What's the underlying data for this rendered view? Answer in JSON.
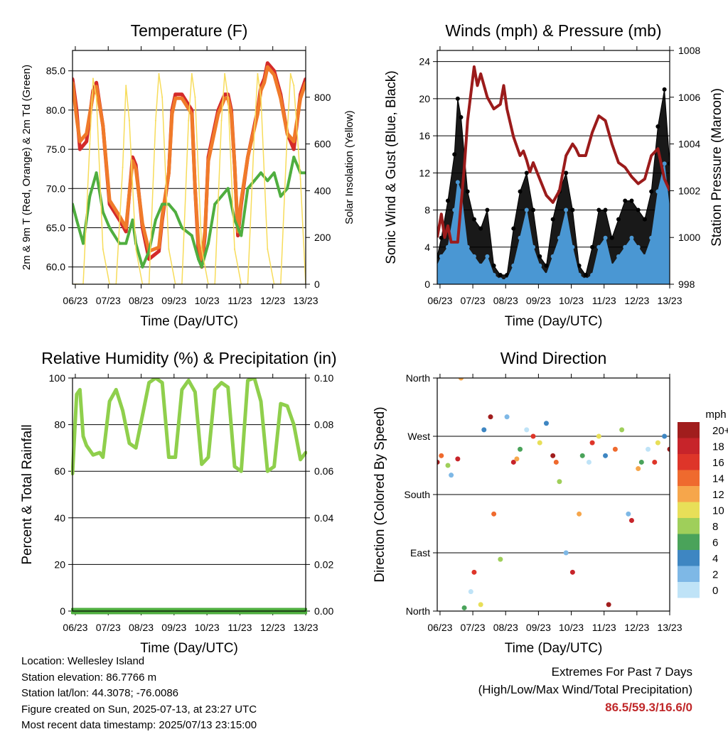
{
  "chart_data": [
    {
      "type": "line",
      "title": "Temperature (F)",
      "xlabel": "Time (Day/UTC)",
      "ylabel": "2m & 9m T (Red, Orange) & 2m Td (Green)",
      "y2label": "Solar Insolation (Yellow)",
      "x_ticks": [
        "06/23",
        "07/23",
        "08/23",
        "09/23",
        "10/23",
        "11/23",
        "12/23",
        "13/23"
      ],
      "ylim": [
        57.8,
        87.6
      ],
      "y_ticks": [
        60.0,
        65.0,
        70.0,
        75.0,
        80.0,
        85.0
      ],
      "y2lim": [
        0,
        1000
      ],
      "y2_ticks": [
        0,
        200,
        400,
        600,
        800
      ],
      "grid": "horizontal",
      "series": [
        {
          "name": "2m T",
          "color": "#d42a2a",
          "axis": "left",
          "x": [
            6.875,
            7.0,
            7.1,
            7.3,
            7.5,
            7.6,
            7.8,
            8.0,
            8.3,
            8.5,
            8.7,
            8.8,
            9.0,
            9.2,
            9.5,
            9.6,
            9.8,
            9.9,
            10.0,
            10.2,
            10.5,
            10.6,
            10.7,
            10.8,
            10.9,
            11.0,
            11.3,
            11.5,
            11.6,
            11.7,
            11.8,
            11.9,
            12.0,
            12.2,
            12.5,
            12.6,
            12.7,
            12.8,
            13.0,
            13.2,
            13.4,
            13.5,
            13.6,
            13.8,
            13.96
          ],
          "values": [
            84,
            80,
            75,
            76,
            82.5,
            83.5,
            78,
            68,
            66,
            64.5,
            74,
            73,
            65,
            61,
            62,
            66,
            72,
            80,
            82,
            82,
            80,
            70,
            62,
            60,
            64,
            74,
            80,
            82,
            82,
            80,
            73,
            64,
            68,
            74,
            80,
            83,
            84,
            86,
            85,
            82,
            77,
            76,
            75,
            82,
            84
          ]
        },
        {
          "name": "9m T",
          "color": "#f07a2a",
          "axis": "left",
          "x": [
            6.875,
            7.0,
            7.1,
            7.3,
            7.5,
            7.6,
            7.8,
            8.0,
            8.3,
            8.5,
            8.7,
            8.8,
            9.0,
            9.2,
            9.5,
            9.6,
            9.8,
            9.9,
            10.0,
            10.2,
            10.5,
            10.6,
            10.7,
            10.8,
            10.9,
            11.0,
            11.3,
            11.5,
            11.6,
            11.7,
            11.8,
            11.9,
            12.0,
            12.2,
            12.5,
            12.6,
            12.7,
            12.8,
            13.0,
            13.2,
            13.4,
            13.5,
            13.6,
            13.8,
            13.96
          ],
          "values": [
            83.5,
            79,
            76,
            77,
            82,
            83,
            78,
            68.5,
            66.5,
            65,
            73.5,
            72.5,
            65.5,
            62,
            62.5,
            66.5,
            72,
            79.5,
            81.5,
            81.5,
            79.5,
            70,
            63,
            61,
            64.5,
            73.5,
            79.5,
            81.5,
            81.5,
            79.5,
            73,
            64.5,
            68.5,
            74,
            79.5,
            82.5,
            83.5,
            85.5,
            84.5,
            81.5,
            77,
            76.5,
            76,
            81.5,
            83.5
          ]
        },
        {
          "name": "2m Td",
          "color": "#4fae3f",
          "axis": "left",
          "x": [
            6.875,
            7.0,
            7.2,
            7.4,
            7.6,
            7.8,
            8.0,
            8.3,
            8.5,
            8.7,
            8.8,
            9.0,
            9.2,
            9.4,
            9.6,
            9.8,
            10.0,
            10.2,
            10.5,
            10.7,
            10.8,
            11.0,
            11.2,
            11.4,
            11.6,
            11.8,
            12.0,
            12.2,
            12.4,
            12.6,
            12.8,
            13.0,
            13.2,
            13.4,
            13.5,
            13.6,
            13.8,
            13.96
          ],
          "values": [
            68,
            66,
            63,
            69,
            72,
            67,
            65,
            63,
            63,
            66,
            63,
            60,
            62,
            66,
            68,
            68,
            67,
            65,
            64,
            61,
            60,
            63,
            68,
            69,
            70,
            66,
            64,
            70,
            71,
            72,
            71,
            72,
            69,
            70,
            72,
            74,
            72,
            72
          ]
        },
        {
          "name": "Solar Insolation",
          "color": "#f7dc5a",
          "axis": "right",
          "x": [
            6.875,
            7.0,
            7.2,
            7.4,
            7.5,
            7.6,
            7.8,
            8.0,
            8.2,
            8.4,
            8.5,
            8.6,
            8.8,
            9.0,
            9.2,
            9.4,
            9.5,
            9.6,
            9.8,
            10.0,
            10.2,
            10.4,
            10.5,
            10.6,
            10.8,
            11.0,
            11.2,
            11.4,
            11.5,
            11.6,
            11.8,
            12.0,
            12.2,
            12.4,
            12.5,
            12.6,
            12.8,
            13.0,
            13.2,
            13.4,
            13.5,
            13.6,
            13.8,
            13.96
          ],
          "values": [
            0,
            0,
            0,
            600,
            880,
            800,
            150,
            0,
            0,
            500,
            850,
            700,
            150,
            0,
            0,
            700,
            900,
            800,
            150,
            0,
            0,
            700,
            900,
            800,
            150,
            0,
            0,
            700,
            900,
            800,
            150,
            0,
            0,
            650,
            900,
            800,
            150,
            0,
            0,
            650,
            900,
            850,
            450,
            0
          ]
        }
      ]
    },
    {
      "type": "scatter",
      "title": "Winds (mph) & Pressure (mb)",
      "xlabel": "Time (Day/UTC)",
      "ylabel": "Sonic Wind & Gust (Blue, Black)",
      "y2label": "Station Pressure (Maroon)",
      "x_ticks": [
        "06/23",
        "07/23",
        "08/23",
        "09/23",
        "10/23",
        "11/23",
        "12/23",
        "13/23"
      ],
      "ylim": [
        0,
        25.2
      ],
      "y_ticks": [
        0,
        4,
        8,
        12,
        16,
        20,
        24
      ],
      "y2lim": [
        998,
        1008
      ],
      "y2_ticks": [
        998,
        1000,
        1002,
        1004,
        1006,
        1008
      ],
      "grid": "horizontal",
      "series": [
        {
          "name": "Gust",
          "color": "#000000",
          "axis": "left",
          "x": [
            6.875,
            7.0,
            7.2,
            7.4,
            7.5,
            7.6,
            7.8,
            8.0,
            8.2,
            8.4,
            8.6,
            8.8,
            9.0,
            9.2,
            9.4,
            9.6,
            9.8,
            10.0,
            10.2,
            10.4,
            10.6,
            10.8,
            11.0,
            11.2,
            11.4,
            11.6,
            11.8,
            12.0,
            12.2,
            12.4,
            12.6,
            12.8,
            13.0,
            13.2,
            13.4,
            13.6,
            13.8,
            13.96
          ],
          "values": [
            3,
            5,
            9,
            14,
            20,
            18,
            10,
            7,
            6,
            8,
            2,
            1,
            1,
            6,
            10,
            12,
            8,
            3,
            2,
            7,
            10,
            12,
            8,
            2,
            1,
            4,
            8,
            8,
            5,
            7,
            9,
            9,
            8,
            7,
            10,
            17,
            21,
            13
          ]
        },
        {
          "name": "Sonic Wind",
          "color": "#4a97d3",
          "axis": "left",
          "x": [
            6.875,
            7.0,
            7.2,
            7.4,
            7.5,
            7.6,
            7.8,
            8.0,
            8.2,
            8.4,
            8.6,
            8.8,
            9.0,
            9.2,
            9.4,
            9.6,
            9.8,
            10.0,
            10.2,
            10.4,
            10.6,
            10.8,
            11.0,
            11.2,
            11.4,
            11.6,
            11.8,
            12.0,
            12.2,
            12.4,
            12.6,
            12.8,
            13.0,
            13.2,
            13.4,
            13.6,
            13.8,
            13.96
          ],
          "values": [
            2,
            3,
            4,
            8,
            11,
            10,
            4,
            3,
            2,
            3,
            1,
            0.5,
            0.5,
            2,
            5,
            8,
            4,
            2,
            1,
            3,
            5,
            8,
            4,
            1,
            0.5,
            1,
            4,
            5,
            2,
            3,
            4,
            5,
            4,
            3,
            5,
            10,
            13,
            8
          ]
        },
        {
          "name": "Station Pressure",
          "color": "#9b1b1b",
          "axis": "right",
          "x": [
            6.875,
            7.0,
            7.1,
            7.2,
            7.3,
            7.5,
            7.7,
            7.8,
            8.0,
            8.1,
            8.2,
            8.4,
            8.6,
            8.8,
            8.9,
            9.0,
            9.2,
            9.4,
            9.5,
            9.6,
            9.7,
            9.8,
            10.0,
            10.2,
            10.4,
            10.6,
            10.8,
            11.0,
            11.1,
            11.2,
            11.4,
            11.6,
            11.8,
            12.0,
            12.2,
            12.4,
            12.6,
            12.8,
            13.0,
            13.2,
            13.4,
            13.6,
            13.8,
            13.96
          ],
          "values": [
            1000,
            1001,
            1000,
            1000.5,
            999.8,
            999.8,
            1003,
            1005,
            1007.3,
            1006.5,
            1007,
            1006,
            1005.5,
            1005.7,
            1006.5,
            1005.5,
            1004.3,
            1003.5,
            1003.7,
            1003.3,
            1002.8,
            1003.2,
            1002.5,
            1001.8,
            1001.5,
            1002,
            1003.5,
            1004,
            1003.8,
            1003.5,
            1003.5,
            1004.5,
            1005.2,
            1005,
            1004,
            1003.2,
            1003,
            1002.6,
            1002.3,
            1002.5,
            1003.5,
            1003.8,
            1002.5,
            1002
          ]
        }
      ]
    },
    {
      "type": "line",
      "title": "Relative Humidity (%) & Precipitation (in)",
      "xlabel": "Time (Day/UTC)",
      "ylabel": "Percent & Total Rainfall",
      "x_ticks": [
        "06/23",
        "07/23",
        "08/23",
        "09/23",
        "10/23",
        "11/23",
        "12/23",
        "13/23"
      ],
      "ylim": [
        0,
        100
      ],
      "y_ticks": [
        0,
        20,
        40,
        60,
        80,
        100
      ],
      "y2lim": [
        0,
        0.1
      ],
      "y2_ticks": [
        "0.00",
        "0.02",
        "0.04",
        "0.06",
        "0.08",
        "0.10"
      ],
      "grid": "horizontal",
      "series": [
        {
          "name": "Relative Humidity",
          "color": "#8fcf4c",
          "axis": "left",
          "x": [
            6.875,
            7.0,
            7.1,
            7.2,
            7.3,
            7.5,
            7.7,
            7.8,
            8.0,
            8.2,
            8.4,
            8.6,
            8.8,
            9.0,
            9.2,
            9.4,
            9.6,
            9.8,
            10.0,
            10.2,
            10.4,
            10.6,
            10.8,
            11.0,
            11.2,
            11.4,
            11.6,
            11.8,
            12.0,
            12.2,
            12.4,
            12.6,
            12.8,
            13.0,
            13.2,
            13.4,
            13.6,
            13.8,
            13.96
          ],
          "values": [
            59,
            93,
            95,
            75,
            71,
            67,
            68,
            66,
            90,
            95,
            86,
            72,
            70,
            84,
            98,
            100,
            98,
            66,
            66,
            95,
            99,
            94,
            63,
            66,
            95,
            98,
            96,
            62,
            60,
            99,
            100,
            90,
            60,
            62,
            89,
            88,
            80,
            65,
            68
          ]
        },
        {
          "name": "Total Precipitation",
          "color": "#4fae3f",
          "axis": "right",
          "x": [
            6.875,
            13.96
          ],
          "values": [
            0,
            0
          ]
        }
      ]
    },
    {
      "type": "scatter",
      "title": "Wind Direction",
      "xlabel": "Time (Day/UTC)",
      "ylabel": "Direction (Colored By Speed)",
      "x_ticks": [
        "06/23",
        "07/23",
        "08/23",
        "09/23",
        "10/23",
        "11/23",
        "12/23",
        "13/23"
      ],
      "ylim": [
        0,
        360
      ],
      "y_ticks": [
        "North",
        "East",
        "South",
        "West",
        "North"
      ],
      "grid": "horizontal",
      "colorbar": {
        "title": "mph",
        "labels": [
          "20+",
          "18",
          "16",
          "14",
          "12",
          "10",
          "8",
          "6",
          "4",
          "2",
          "0"
        ],
        "colors": [
          "#a11d1d",
          "#c7242a",
          "#de3529",
          "#ef6a2e",
          "#f6a64b",
          "#e8df58",
          "#9fcf5a",
          "#4aa35a",
          "#3e86c2",
          "#7eb8e6",
          "#bfe3f7"
        ]
      },
      "series": [
        {
          "name": "Direction",
          "axis": "left",
          "x": [
            6.875,
            7.0,
            7.2,
            7.3,
            7.5,
            7.6,
            7.7,
            7.9,
            8.0,
            8.2,
            8.3,
            8.5,
            8.6,
            8.8,
            9.0,
            9.2,
            9.3,
            9.4,
            9.6,
            9.8,
            10.0,
            10.2,
            10.4,
            10.5,
            10.6,
            10.8,
            11.0,
            11.2,
            11.3,
            11.5,
            11.6,
            11.8,
            12.0,
            12.1,
            12.3,
            12.5,
            12.7,
            12.8,
            13.0,
            13.1,
            13.3,
            13.5,
            13.6,
            13.8,
            13.96
          ],
          "values": [
            230,
            240,
            225,
            210,
            235,
            360,
            5,
            30,
            60,
            10,
            280,
            300,
            150,
            80,
            300,
            230,
            235,
            250,
            280,
            270,
            260,
            290,
            240,
            230,
            200,
            90,
            60,
            150,
            240,
            230,
            260,
            270,
            240,
            10,
            250,
            280,
            150,
            140,
            220,
            230,
            250,
            230,
            260,
            270,
            250
          ]
        }
      ]
    }
  ],
  "info": {
    "location": "Location: Wellesley Island",
    "elevation": "Station elevation: 86.7766 m",
    "latlon": "Station lat/lon: 44.3078; -76.0086",
    "created": "Figure created on Sun, 2025-07-13, at 23:27 UTC",
    "recent": "Most recent data timestamp: 2025/07/13 23:15:00"
  },
  "extremes": {
    "line1": "Extremes For Past 7 Days",
    "line2": "(High/Low/Max Wind/Total Precipitation)",
    "value": "86.5/59.3/16.6/0"
  }
}
